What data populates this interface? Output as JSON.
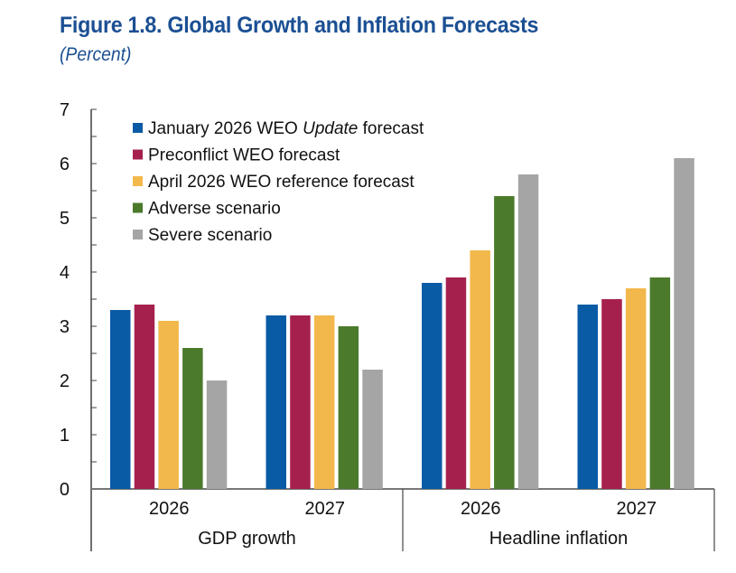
{
  "header": {
    "title": "Figure 1.8.  Global Growth and Inflation Forecasts",
    "subtitle": "(Percent)"
  },
  "chart_data": {
    "type": "bar",
    "title": "Figure 1.8. Global Growth and Inflation Forecasts",
    "subtitle": "(Percent)",
    "xlabel": "",
    "ylabel": "",
    "ylim": [
      0,
      7
    ],
    "yticks": [
      0,
      1,
      2,
      3,
      4,
      5,
      6,
      7
    ],
    "grid": false,
    "legend_position": "top-left",
    "categories": [
      "2026",
      "2027",
      "2026",
      "2027"
    ],
    "category_groups": [
      {
        "label": "GDP growth",
        "categories": [
          0,
          1
        ]
      },
      {
        "label": "Headline inflation",
        "categories": [
          2,
          3
        ]
      }
    ],
    "series": [
      {
        "name": "January 2026 WEO Update forecast",
        "name_parts": [
          {
            "text": "January 2026 WEO ",
            "italic": false
          },
          {
            "text": "Update",
            "italic": true
          },
          {
            "text": " forecast",
            "italic": false
          }
        ],
        "color": "#0A5BA6",
        "values": [
          3.3,
          3.2,
          3.8,
          3.4
        ]
      },
      {
        "name": "Preconflict WEO forecast",
        "color": "#A6204E",
        "values": [
          3.4,
          3.2,
          3.9,
          3.5
        ]
      },
      {
        "name": "April 2026 WEO reference forecast",
        "color": "#F2B84B",
        "values": [
          3.1,
          3.2,
          4.4,
          3.7
        ]
      },
      {
        "name": "Adverse scenario",
        "color": "#4B7A2B",
        "values": [
          2.6,
          3.0,
          5.4,
          3.9
        ]
      },
      {
        "name": "Severe scenario",
        "color": "#A5A5A5",
        "values": [
          2.0,
          2.2,
          5.8,
          6.1
        ]
      }
    ]
  }
}
